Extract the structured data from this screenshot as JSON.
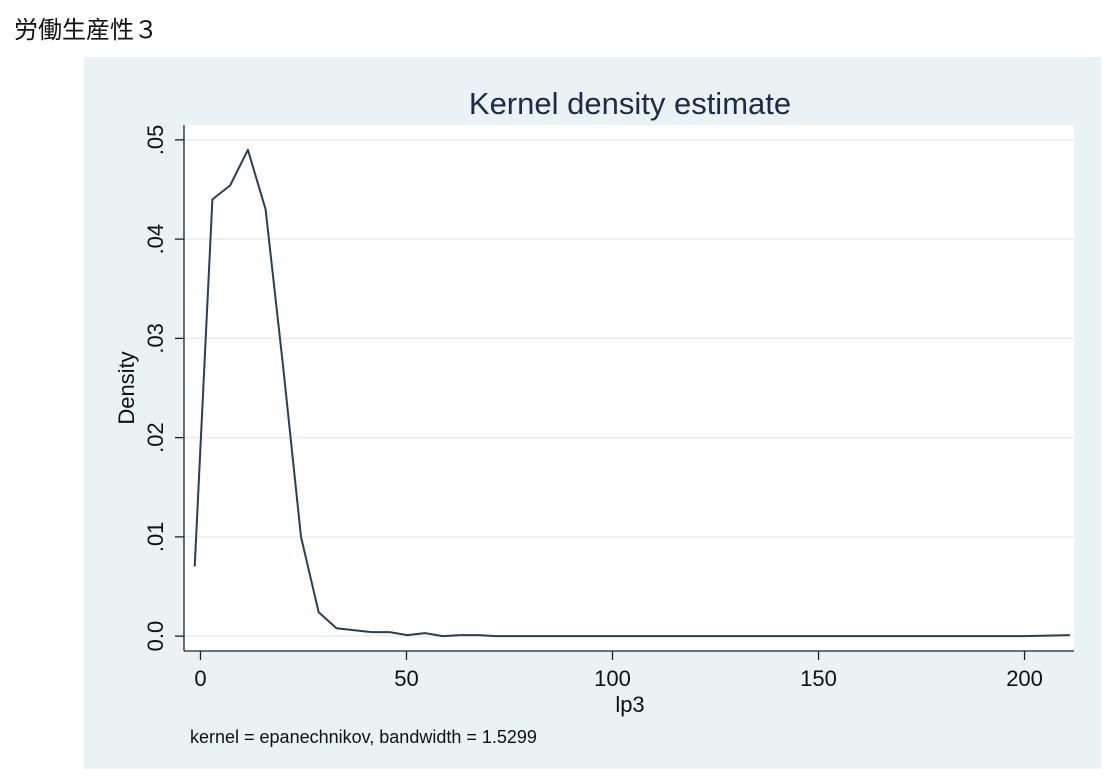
{
  "page": {
    "heading": "労働生産性３"
  },
  "chart_data": {
    "type": "line",
    "title": "Kernel density estimate",
    "xlabel": "lp3",
    "ylabel": "Density",
    "note": "kernel = epanechnikov, bandwidth = 1.5299",
    "xlim": [
      -4,
      212
    ],
    "ylim": [
      -0.0015,
      0.0515
    ],
    "xticks": [
      0,
      50,
      100,
      150,
      200
    ],
    "xtick_labels": [
      "0",
      "50",
      "100",
      "150",
      "200"
    ],
    "yticks": [
      0,
      0.01,
      0.02,
      0.03,
      0.04,
      0.05
    ],
    "ytick_labels": [
      "0.0",
      ".01",
      ".02",
      ".03",
      ".04",
      ".05"
    ],
    "grid": true,
    "colors": {
      "line": "#2d3c58",
      "plot_bg": "#ffffff",
      "panel_bg": "#eaf2f3",
      "grid": "#e6ecef"
    },
    "series": [
      {
        "x": [
          -1.4,
          2.9,
          7.2,
          11.5,
          15.8,
          20.1,
          24.4,
          28.7,
          33.0,
          37.3,
          41.6,
          45.9,
          50.2,
          54.5,
          58.8,
          63.1,
          67.4,
          71.7,
          76.0,
          100.0,
          150.0,
          200.0,
          211.0
        ],
        "y": [
          0.007,
          0.044,
          0.0454,
          0.049,
          0.043,
          0.027,
          0.01,
          0.0024,
          0.0008,
          0.0006,
          0.0004,
          0.0004,
          0.0001,
          0.0003,
          0.0,
          0.0001,
          0.0001,
          0.0,
          0.0,
          0.0,
          0.0,
          0.0,
          0.0001
        ]
      }
    ]
  }
}
